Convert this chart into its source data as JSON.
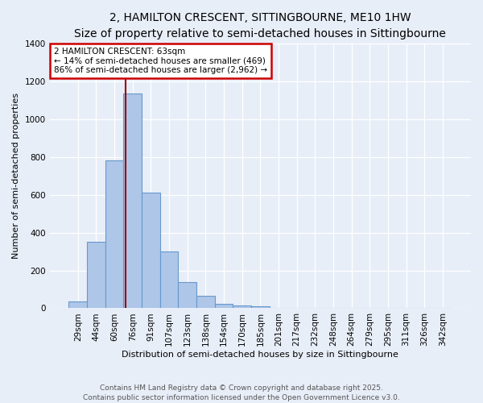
{
  "title": "2, HAMILTON CRESCENT, SITTINGBOURNE, ME10 1HW",
  "subtitle": "Size of property relative to semi-detached houses in Sittingbourne",
  "xlabel": "Distribution of semi-detached houses by size in Sittingbourne",
  "ylabel": "Number of semi-detached properties",
  "categories": [
    "29sqm",
    "44sqm",
    "60sqm",
    "76sqm",
    "91sqm",
    "107sqm",
    "123sqm",
    "138sqm",
    "154sqm",
    "170sqm",
    "185sqm",
    "201sqm",
    "217sqm",
    "232sqm",
    "248sqm",
    "264sqm",
    "279sqm",
    "295sqm",
    "311sqm",
    "326sqm",
    "342sqm"
  ],
  "values": [
    35,
    350,
    780,
    1135,
    610,
    300,
    140,
    65,
    25,
    15,
    10,
    0,
    0,
    0,
    0,
    0,
    0,
    0,
    0,
    0,
    0
  ],
  "bar_color": "#aec6e8",
  "bar_edge_color": "#6699cc",
  "vline_color": "#990000",
  "vline_pos": 2.63,
  "annotation_title": "2 HAMILTON CRESCENT: 63sqm",
  "annotation_line1": "← 14% of semi-detached houses are smaller (469)",
  "annotation_line2": "86% of semi-detached houses are larger (2,962) →",
  "annotation_box_color": "#cc0000",
  "ylim": [
    0,
    1400
  ],
  "yticks": [
    0,
    200,
    400,
    600,
    800,
    1000,
    1200,
    1400
  ],
  "footer_line1": "Contains HM Land Registry data © Crown copyright and database right 2025.",
  "footer_line2": "Contains public sector information licensed under the Open Government Licence v3.0.",
  "bg_color": "#e8eef8",
  "plot_bg_color": "#e8eef8",
  "title_fontsize": 10,
  "subtitle_fontsize": 9,
  "xlabel_fontsize": 8,
  "ylabel_fontsize": 8,
  "tick_fontsize": 7.5,
  "annotation_fontsize": 7.5,
  "footer_fontsize": 6.5
}
